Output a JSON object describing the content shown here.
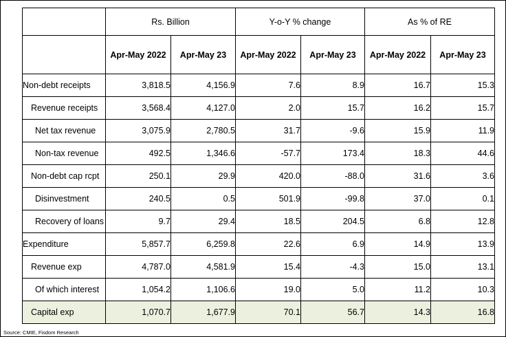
{
  "header": {
    "groups": [
      "Rs. Billion",
      "Y-o-Y % change",
      "As % of RE"
    ],
    "periods": [
      "Apr-May 2022",
      "Apr-May 23",
      "Apr-May 2022",
      "Apr-May 23",
      "Apr-May 2022",
      "Apr-May 23"
    ]
  },
  "rows": [
    {
      "label": "Non-debt receipts",
      "indent": 0,
      "values": [
        "3,818.5",
        "4,156.9",
        "7.6",
        "8.9",
        "16.7",
        "15.3"
      ]
    },
    {
      "label": "Revenue receipts",
      "indent": 1,
      "values": [
        "3,568.4",
        "4,127.0",
        "2.0",
        "15.7",
        "16.2",
        "15.7"
      ]
    },
    {
      "label": "Net tax revenue",
      "indent": 2,
      "values": [
        "3,075.9",
        "2,780.5",
        "31.7",
        "-9.6",
        "15.9",
        "11.9"
      ]
    },
    {
      "label": "Non-tax revenue",
      "indent": 2,
      "values": [
        "492.5",
        "1,346.6",
        "-57.7",
        "173.4",
        "18.3",
        "44.6"
      ]
    },
    {
      "label": "Non-debt cap rcpt",
      "indent": 1,
      "values": [
        "250.1",
        "29.9",
        "420.0",
        "-88.0",
        "31.6",
        "3.6"
      ]
    },
    {
      "label": "Disinvestment",
      "indent": 2,
      "values": [
        "240.5",
        "0.5",
        "501.9",
        "-99.8",
        "37.0",
        "0.1"
      ]
    },
    {
      "label": "Recovery of loans",
      "indent": 2,
      "values": [
        "9.7",
        "29.4",
        "18.5",
        "204.5",
        "6.8",
        "12.8"
      ]
    },
    {
      "label": "Expenditure",
      "indent": 0,
      "values": [
        "5,857.7",
        "6,259.8",
        "22.6",
        "6.9",
        "14.9",
        "13.9"
      ]
    },
    {
      "label": "Revenue exp",
      "indent": 1,
      "values": [
        "4,787.0",
        "4,581.9",
        "15.4",
        "-4.3",
        "15.0",
        "13.1"
      ]
    },
    {
      "label": "Of which interest",
      "indent": 2,
      "values": [
        "1,054.2",
        "1,106.6",
        "19.0",
        "5.0",
        "11.2",
        "10.3"
      ]
    },
    {
      "label": "Capital exp",
      "indent": 1,
      "highlight": true,
      "values": [
        "1,070.7",
        "1,677.9",
        "70.1",
        "56.7",
        "14.3",
        "16.8"
      ]
    }
  ],
  "source": "Source: CMIE, Fisdom Research",
  "colors": {
    "highlight_row": "#ebf1de",
    "border": "#000000"
  }
}
